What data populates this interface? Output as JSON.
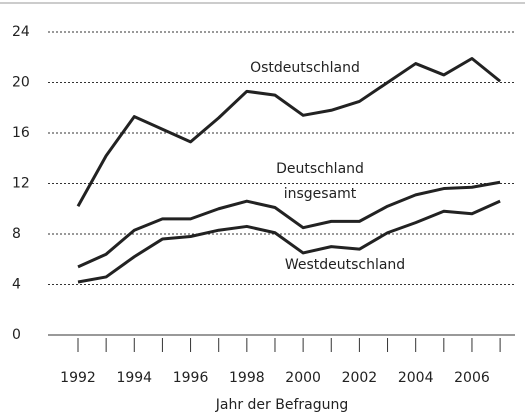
{
  "chart_data": {
    "type": "line",
    "xlabel": "Jahr der Befragung",
    "categories": [
      "1992",
      null,
      "1994",
      null,
      "1996",
      null,
      "1998",
      null,
      "2000",
      null,
      "2002",
      null,
      "2004",
      null,
      "2006",
      null
    ],
    "series": [
      {
        "name": "Ostdeutschland",
        "color": "#222222",
        "values": [
          10.2,
          14.2,
          17.3,
          16.3,
          15.3,
          17.2,
          19.3,
          19.0,
          17.4,
          17.8,
          18.5,
          20.0,
          21.5,
          20.6,
          21.9,
          20.1
        ]
      },
      {
        "name": "Deutschland insgesamt",
        "color": "#222222",
        "values": [
          5.4,
          6.4,
          8.3,
          9.2,
          9.2,
          10.0,
          10.6,
          10.1,
          8.5,
          9.0,
          9.0,
          10.2,
          11.1,
          11.6,
          11.7,
          12.1
        ]
      },
      {
        "name": "Westdeutschland",
        "color": "#222222",
        "values": [
          4.2,
          4.6,
          6.2,
          7.6,
          7.8,
          8.3,
          8.6,
          8.1,
          6.5,
          7.0,
          6.8,
          8.1,
          8.9,
          9.8,
          9.6,
          10.6
        ]
      }
    ],
    "ylim": [
      0,
      24
    ],
    "yticks": [
      0,
      4,
      8,
      12,
      16,
      20,
      24
    ],
    "grid": true
  }
}
